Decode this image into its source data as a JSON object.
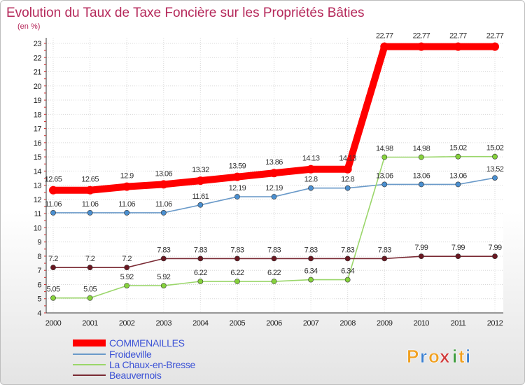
{
  "chart_data": {
    "type": "line",
    "title": "Evolution du Taux de Taxe Foncière sur les Propriétés Bâties",
    "subtitle": "(en %)",
    "categories": [
      "2000",
      "2001",
      "2002",
      "2003",
      "2004",
      "2005",
      "2006",
      "2007",
      "2008",
      "2009",
      "2010",
      "2011",
      "2012"
    ],
    "ylim": [
      4,
      23
    ],
    "yticks": [
      4,
      5,
      6,
      7,
      8,
      9,
      10,
      11,
      12,
      13,
      14,
      15,
      16,
      17,
      18,
      19,
      20,
      21,
      22,
      23
    ],
    "grid": true,
    "legend_position": "bottom-left",
    "series": [
      {
        "name": "COMMENAILLES",
        "color": "#ff0000",
        "values": [
          12.65,
          12.65,
          12.9,
          13.06,
          13.32,
          13.59,
          13.86,
          14.13,
          14.13,
          22.77,
          22.77,
          22.77,
          22.77
        ],
        "labels": [
          "12.65",
          "12.65",
          "12.9",
          "13.06",
          "13.32",
          "13.59",
          "13.86",
          "14.13",
          "14.13",
          "22.77",
          "22.77",
          "22.77",
          "22.77"
        ]
      },
      {
        "name": "Froideville",
        "color": "#6a9ac9",
        "marker": "#4a8fd0",
        "values": [
          11.06,
          11.06,
          11.06,
          11.06,
          11.61,
          12.19,
          12.19,
          12.8,
          12.8,
          13.06,
          13.06,
          13.06,
          13.52
        ],
        "labels": [
          "11.06",
          "11.06",
          "11.06",
          "11.06",
          "11.61",
          "12.19",
          "12.19",
          "12.8",
          "12.8",
          "13.06",
          "13.06",
          "13.06",
          "13.52"
        ]
      },
      {
        "name": "La Chaux-en-Bresse",
        "color": "#9ad66a",
        "marker": "#86d23c",
        "values": [
          5.05,
          5.05,
          5.92,
          5.92,
          6.22,
          6.22,
          6.22,
          6.34,
          6.34,
          14.98,
          14.98,
          15.02,
          15.02
        ],
        "labels": [
          "5.05",
          "5.05",
          "5.92",
          "5.92",
          "6.22",
          "6.22",
          "6.22",
          "6.34",
          "6.34",
          "14.98",
          "14.98",
          "15.02",
          "15.02"
        ]
      },
      {
        "name": "Beauvernois",
        "color": "#7a2a34",
        "marker": "#6a1822",
        "values": [
          7.2,
          7.2,
          7.2,
          7.83,
          7.83,
          7.83,
          7.83,
          7.83,
          7.83,
          7.83,
          7.99,
          7.99,
          7.99
        ],
        "labels": [
          "7.2",
          "7.2",
          "7.2",
          "7.83",
          "7.83",
          "7.83",
          "7.83",
          "7.83",
          "7.83",
          "7.83",
          "7.99",
          "7.99",
          "7.99"
        ]
      }
    ]
  },
  "logo": {
    "text": "Proxiti",
    "letters": [
      "P",
      "r",
      "o",
      "x",
      "i",
      "t",
      "i"
    ],
    "colors": [
      "#f0a020",
      "#3a7fd0",
      "#f0a020",
      "#d03a3a",
      "#3a9a3a",
      "#f0a020",
      "#3a7fd0"
    ]
  }
}
